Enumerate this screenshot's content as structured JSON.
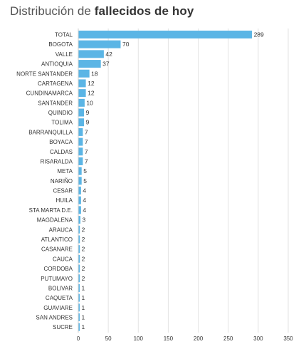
{
  "title": {
    "prefix": "Distribución de",
    "highlight": "fallecidos de hoy"
  },
  "colors": {
    "bar": "#5bb5e5",
    "text": "#333333",
    "grid": "#e3e3e3",
    "axis": "#cfcfcf"
  },
  "chart_data": {
    "type": "bar",
    "orientation": "horizontal",
    "title": "Distribución de fallecidos de hoy",
    "xlabel": "",
    "ylabel": "",
    "xlim": [
      0,
      350
    ],
    "ticks": [
      0,
      50,
      100,
      150,
      200,
      250,
      300,
      350
    ],
    "grid": true,
    "categories": [
      "TOTAL",
      "BOGOTA",
      "VALLE",
      "ANTIOQUIA",
      "NORTE SANTANDER",
      "CARTAGENA",
      "CUNDINAMARCA",
      "SANTANDER",
      "QUINDIO",
      "TOLIMA",
      "BARRANQUILLA",
      "BOYACA",
      "CALDAS",
      "RISARALDA",
      "META",
      "NARIÑO",
      "CESAR",
      "HUILA",
      "STA MARTA D.E.",
      "MAGDALENA",
      "ARAUCA",
      "ATLANTICO",
      "CASANARE",
      "CAUCA",
      "CORDOBA",
      "PUTUMAYO",
      "BOLIVAR",
      "CAQUETA",
      "GUAVIARE",
      "SAN ANDRES",
      "SUCRE"
    ],
    "values": [
      289,
      70,
      42,
      37,
      18,
      12,
      12,
      10,
      9,
      9,
      7,
      7,
      7,
      7,
      5,
      5,
      4,
      4,
      4,
      3,
      2,
      2,
      2,
      2,
      2,
      2,
      1,
      1,
      1,
      1,
      1
    ]
  }
}
